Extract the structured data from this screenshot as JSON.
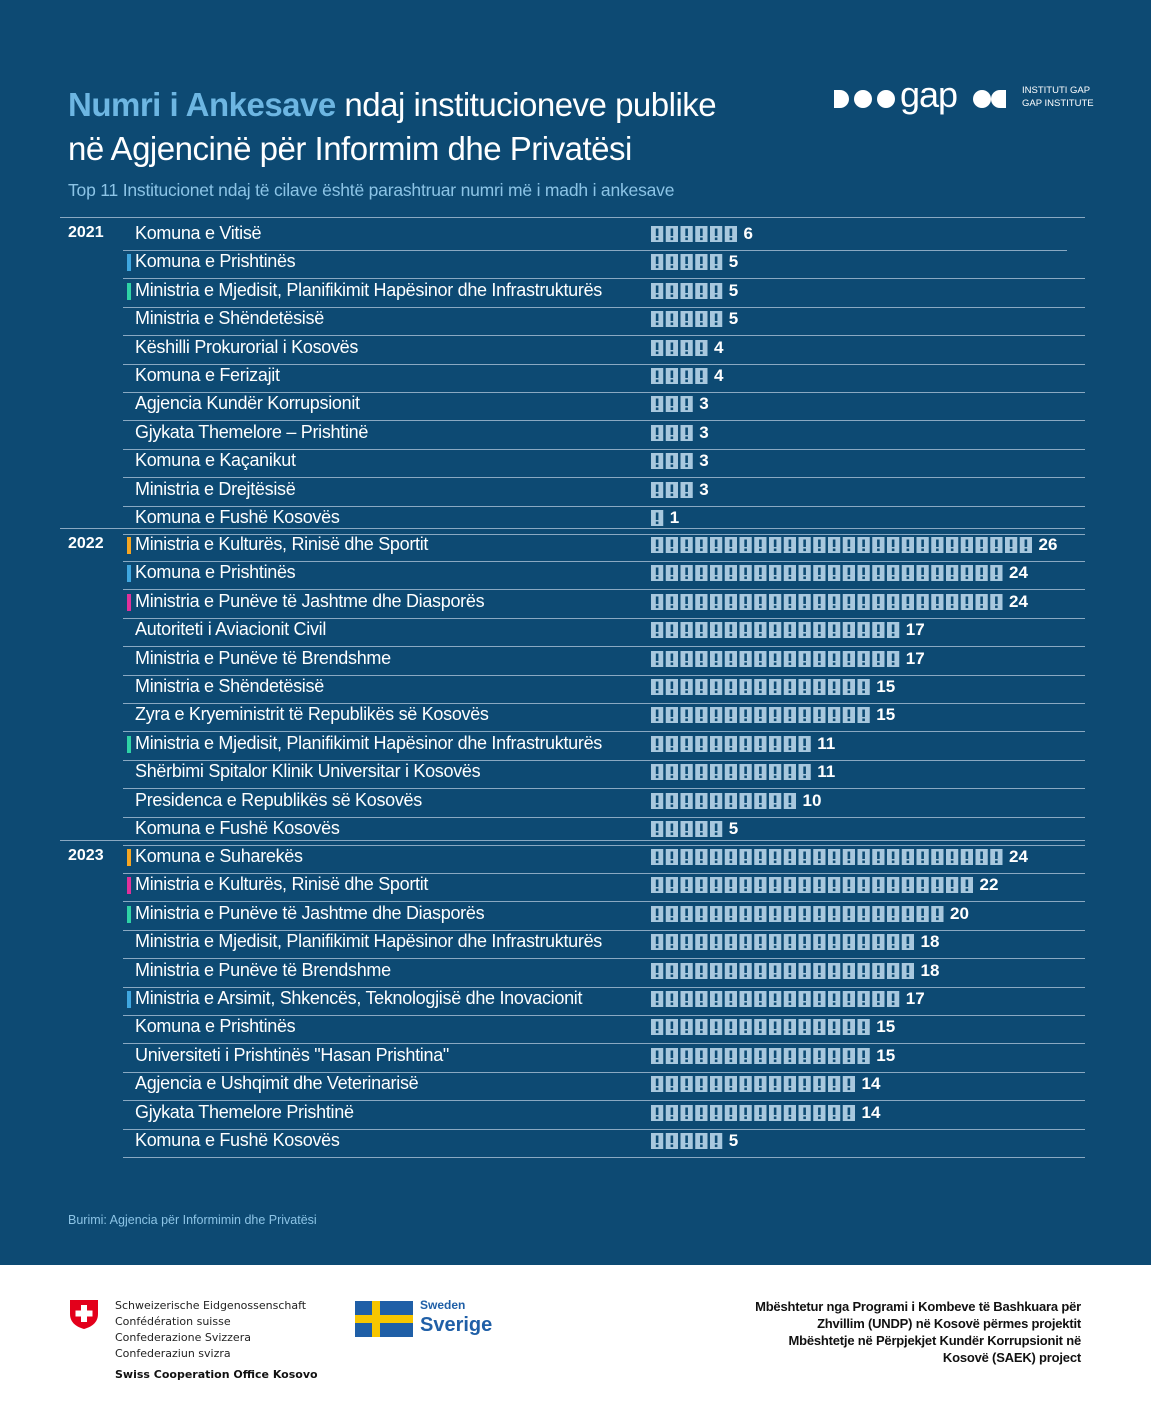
{
  "title": {
    "highlight": "Numri i Ankesave",
    "rest_line1": " ndaj institucioneve publike",
    "line2": "në Agjencinë për Informim dhe Privatësi"
  },
  "subtitle": "Top 11 Institucionet ndaj të cilave është parashtruar numri më i madh i ankesave",
  "logo": {
    "wordmark": "gap",
    "line1": "INSTITUTI GAP",
    "line2": "GAP INSTITUTE"
  },
  "colors": {
    "background": "#0d4a73",
    "highlight": "#6db6e2",
    "icon_fill": "#a8c8de",
    "marker_blue": "#3fa7e0",
    "marker_green": "#2ed3a6",
    "marker_orange": "#f5a623",
    "marker_magenta": "#e0319b"
  },
  "chart_data": {
    "type": "bar",
    "unit_icon": "exclamation-icon",
    "groups": [
      {
        "year": "2021",
        "rows": [
          {
            "label": "Komuna e Vitisë",
            "value": 6,
            "marker": null
          },
          {
            "label": "Komuna e Prishtinës",
            "value": 5,
            "marker": "blue"
          },
          {
            "label": "Ministria e Mjedisit, Planifikimit Hapësinor dhe Infrastrukturës",
            "value": 5,
            "marker": "green"
          },
          {
            "label": "Ministria e Shëndetësisë",
            "value": 5,
            "marker": null
          },
          {
            "label": "Këshilli Prokurorial i Kosovës",
            "value": 4,
            "marker": null
          },
          {
            "label": "Komuna e Ferizajit",
            "value": 4,
            "marker": null
          },
          {
            "label": "Agjencia Kundër Korrupsionit",
            "value": 3,
            "marker": null
          },
          {
            "label": "Gjykata Themelore – Prishtinë",
            "value": 3,
            "marker": null
          },
          {
            "label": "Komuna e Kaçanikut",
            "value": 3,
            "marker": null
          },
          {
            "label": "Ministria e Drejtësisë",
            "value": 3,
            "marker": null
          },
          {
            "label": "Komuna e Fushë Kosovës",
            "value": 1,
            "marker": null
          }
        ]
      },
      {
        "year": "2022",
        "rows": [
          {
            "label": "Ministria e Kulturës, Rinisë dhe Sportit",
            "value": 26,
            "marker": "orange"
          },
          {
            "label": "Komuna e Prishtinës",
            "value": 24,
            "marker": "blue"
          },
          {
            "label": "Ministria e Punëve të Jashtme dhe Diasporës",
            "value": 24,
            "marker": "magenta"
          },
          {
            "label": "Autoriteti i Aviacionit Civil",
            "value": 17,
            "marker": null
          },
          {
            "label": "Ministria e Punëve të Brendshme",
            "value": 17,
            "marker": null
          },
          {
            "label": "Ministria e Shëndetësisë",
            "value": 15,
            "marker": null
          },
          {
            "label": "Zyra e Kryeministrit të Republikës së Kosovës",
            "value": 15,
            "marker": null
          },
          {
            "label": "Ministria e Mjedisit, Planifikimit Hapësinor dhe Infrastrukturës",
            "value": 11,
            "marker": "green"
          },
          {
            "label": "Shërbimi Spitalor Klinik Universitar i Kosovës",
            "value": 11,
            "marker": null
          },
          {
            "label": "Presidenca e Republikës së Kosovës",
            "value": 10,
            "marker": null
          },
          {
            "label": "Komuna e Fushë Kosovës",
            "value": 5,
            "marker": null
          }
        ]
      },
      {
        "year": "2023",
        "rows": [
          {
            "label": "Komuna e Suharekës",
            "value": 24,
            "marker": "orange"
          },
          {
            "label": "Ministria e Kulturës, Rinisë dhe Sportit",
            "value": 22,
            "marker": "magenta"
          },
          {
            "label": "Ministria e Punëve të Jashtme dhe Diasporës",
            "value": 20,
            "marker": "green"
          },
          {
            "label": "Ministria e Mjedisit, Planifikimit Hapësinor dhe Infrastrukturës",
            "value": 18,
            "marker": null
          },
          {
            "label": "Ministria e Punëve të Brendshme",
            "value": 18,
            "marker": null
          },
          {
            "label": "Ministria e Arsimit, Shkencës, Teknologjisë dhe Inovacionit",
            "value": 17,
            "marker": "blue"
          },
          {
            "label": "Komuna e Prishtinës",
            "value": 15,
            "marker": null
          },
          {
            "label": "Universiteti i Prishtinës \"Hasan Prishtina\"",
            "value": 15,
            "marker": null
          },
          {
            "label": "Agjencia e Ushqimit dhe Veterinarisë",
            "value": 14,
            "marker": null
          },
          {
            "label": "Gjykata Themelore Prishtinë",
            "value": 14,
            "marker": null
          },
          {
            "label": "Komuna e Fushë Kosovës",
            "value": 5,
            "marker": null
          }
        ]
      }
    ]
  },
  "source": "Burimi: Agjencia për Informimin dhe Privatësi",
  "footer": {
    "swiss_lines": [
      "Schweizerische Eidgenossenschaft",
      "Confédération suisse",
      "Confederazione Svizzera",
      "Confederaziun svizra"
    ],
    "swiss_office": "Swiss Cooperation Office Kosovo",
    "sweden_en": "Sweden",
    "sweden_sv": "Sverige",
    "undp_lines": [
      "Mbështetur nga Programi i Kombeve të Bashkuara për",
      "Zhvillim (UNDP) në Kosovë përmes projektit",
      "Mbështetje në Përpjekjet Kundër Korrupsionit në",
      "Kosovë (SAEK) project"
    ]
  }
}
